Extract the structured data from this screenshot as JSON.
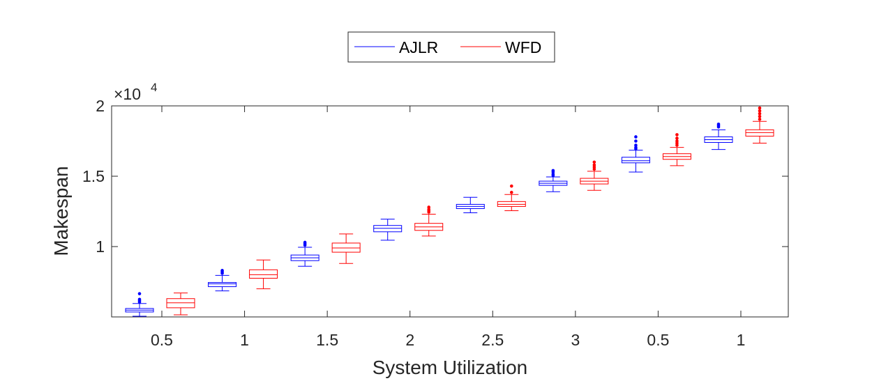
{
  "chart_data": {
    "type": "box",
    "xlabel": "System Utilization",
    "ylabel": "Makespan",
    "y_exponent_label": "×10",
    "y_exponent_power": "4",
    "ylim": [
      5000,
      20000
    ],
    "yticks": [
      {
        "value": 10000,
        "label": "1"
      },
      {
        "value": 15000,
        "label": "1.5"
      },
      {
        "value": 20000,
        "label": "2"
      }
    ],
    "categories": [
      "0.5",
      "1",
      "1.5",
      "2",
      "2.5",
      "3",
      "0.5",
      "1"
    ],
    "legend": {
      "position": "top-center"
    },
    "colors": {
      "AJLR": "#0000ff",
      "WFD": "#ff0000",
      "axis": "#262626"
    },
    "series": [
      {
        "name": "AJLR",
        "boxes": [
          {
            "whisker_low": 5050,
            "q1": 5350,
            "median": 5480,
            "q3": 5600,
            "whisker_high": 5950,
            "outliers": [
              6050,
              6150,
              6250,
              6650
            ]
          },
          {
            "whisker_low": 6850,
            "q1": 7150,
            "median": 7350,
            "q3": 7450,
            "whisker_high": 7950,
            "outliers": [
              8100,
              8200,
              8300
            ]
          },
          {
            "whisker_low": 8600,
            "q1": 9000,
            "median": 9200,
            "q3": 9400,
            "whisker_high": 9950,
            "outliers": [
              10100,
              10200,
              10300
            ]
          },
          {
            "whisker_low": 10450,
            "q1": 11050,
            "median": 11300,
            "q3": 11500,
            "whisker_high": 11950,
            "outliers": []
          },
          {
            "whisker_low": 12400,
            "q1": 12700,
            "median": 12850,
            "q3": 13000,
            "whisker_high": 13500,
            "outliers": []
          },
          {
            "whisker_low": 13900,
            "q1": 14350,
            "median": 14500,
            "q3": 14650,
            "whisker_high": 14950,
            "outliers": [
              15050,
              15150,
              15300,
              15400
            ]
          },
          {
            "whisker_low": 15300,
            "q1": 15950,
            "median": 16100,
            "q3": 16350,
            "whisker_high": 16850,
            "outliers": [
              16950,
              17050,
              17200,
              17500,
              17800
            ]
          },
          {
            "whisker_low": 16900,
            "q1": 17400,
            "median": 17600,
            "q3": 17800,
            "whisker_high": 18300,
            "outliers": [
              18500,
              18600,
              18700
            ]
          }
        ]
      },
      {
        "name": "WFD",
        "boxes": [
          {
            "whisker_low": 5150,
            "q1": 5650,
            "median": 6000,
            "q3": 6300,
            "whisker_high": 6700,
            "outliers": []
          },
          {
            "whisker_low": 7000,
            "q1": 7750,
            "median": 8000,
            "q3": 8350,
            "whisker_high": 9050,
            "outliers": []
          },
          {
            "whisker_low": 8800,
            "q1": 9600,
            "median": 9900,
            "q3": 10250,
            "whisker_high": 10900,
            "outliers": []
          },
          {
            "whisker_low": 10750,
            "q1": 11150,
            "median": 11400,
            "q3": 11650,
            "whisker_high": 12300,
            "outliers": [
              12450,
              12550,
              12650,
              12800
            ]
          },
          {
            "whisker_low": 12550,
            "q1": 12850,
            "median": 13000,
            "q3": 13200,
            "whisker_high": 13700,
            "outliers": [
              13850,
              14300
            ]
          },
          {
            "whisker_low": 14000,
            "q1": 14450,
            "median": 14650,
            "q3": 14850,
            "whisker_high": 15350,
            "outliers": [
              15500,
              15650,
              15800,
              16000
            ]
          },
          {
            "whisker_low": 15750,
            "q1": 16200,
            "median": 16400,
            "q3": 16600,
            "whisker_high": 17050,
            "outliers": [
              17200,
              17350,
              17500,
              17700,
              17950
            ]
          },
          {
            "whisker_low": 17350,
            "q1": 17850,
            "median": 18100,
            "q3": 18300,
            "whisker_high": 18900,
            "outliers": [
              19050,
              19250,
              19450,
              19650,
              19850
            ]
          }
        ]
      }
    ]
  }
}
